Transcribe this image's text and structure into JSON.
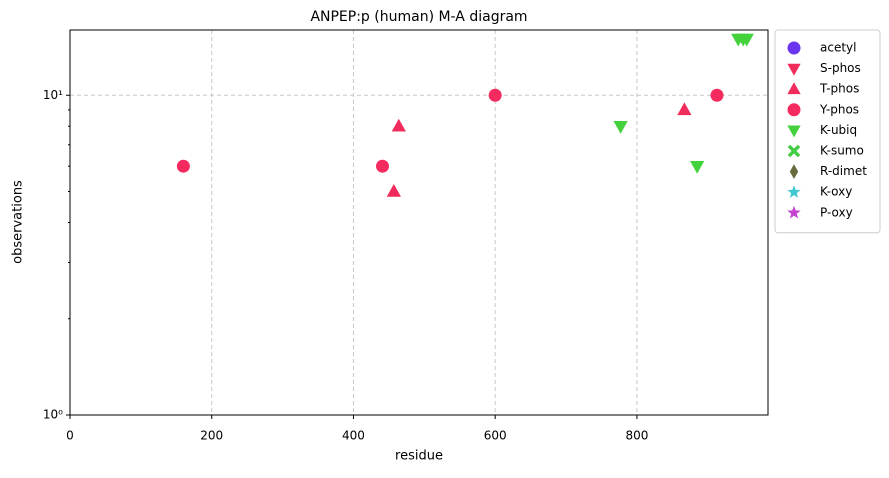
{
  "chart_data": {
    "type": "scatter",
    "title": "ANPEP:p (human) M-A diagram",
    "xlabel": "residue",
    "ylabel": "observations",
    "xlim": [
      0,
      985
    ],
    "xticks": [
      0,
      200,
      400,
      600,
      800
    ],
    "ylim": [
      1,
      16
    ],
    "yscale": "log",
    "yticks": [
      {
        "value": 1,
        "label": "10⁰"
      },
      {
        "value": 10,
        "label": "10¹"
      }
    ],
    "yminorticks": [
      2,
      3,
      4,
      5,
      6,
      7,
      8,
      9
    ],
    "grid": true,
    "legend": "outside-right",
    "series": [
      {
        "name": "acetyl",
        "color": "#6a35ee",
        "marker": "circle",
        "x": [],
        "values": []
      },
      {
        "name": "S-phos",
        "color": "#f02c5c",
        "marker": "triangle-down",
        "x": [],
        "values": []
      },
      {
        "name": "T-phos",
        "color": "#f02c5c",
        "marker": "triangle-up",
        "x": [
          464,
          457,
          867
        ],
        "values": [
          8,
          5,
          9
        ]
      },
      {
        "name": "Y-phos",
        "color": "#f52a5f",
        "marker": "circle",
        "x": [
          160,
          441,
          600,
          913
        ],
        "values": [
          6,
          6,
          10,
          10
        ]
      },
      {
        "name": "K-ubiq",
        "color": "#44d23c",
        "marker": "triangle-down",
        "x": [
          777,
          885,
          943,
          950,
          955
        ],
        "values": [
          8,
          6,
          15,
          15,
          15
        ]
      },
      {
        "name": "K-sumo",
        "color": "#44cc44",
        "marker": "x",
        "x": [],
        "values": []
      },
      {
        "name": "R-dimet",
        "color": "#6b6b40",
        "marker": "diamond",
        "x": [],
        "values": []
      },
      {
        "name": "K-oxy",
        "color": "#40c8d4",
        "marker": "star",
        "x": [],
        "values": []
      },
      {
        "name": "P-oxy",
        "color": "#c444d0",
        "marker": "star",
        "x": [],
        "values": []
      }
    ]
  }
}
